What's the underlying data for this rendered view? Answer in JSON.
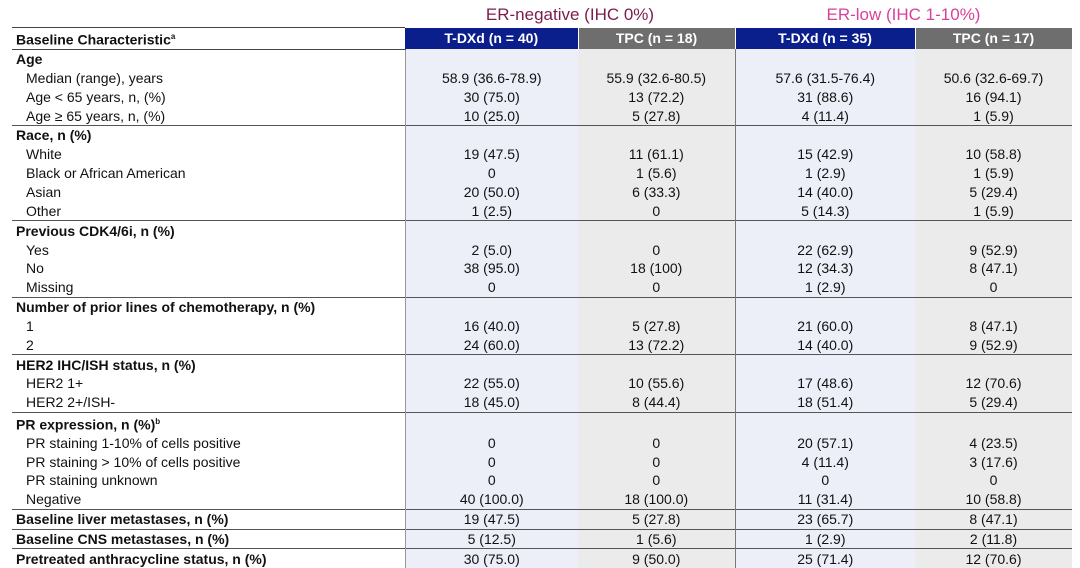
{
  "groups": [
    {
      "label": "ER-negative (IHC 0%)",
      "color": "#7b1c4e"
    },
    {
      "label": "ER-low (IHC 1-10%)",
      "color": "#d9419a"
    }
  ],
  "header": {
    "label": "Baseline Characteristic",
    "label_sup": "a",
    "columns": [
      "T-DXd (n = 40)",
      "TPC (n = 18)",
      "T-DXd (n = 35)",
      "TPC (n = 17)"
    ]
  },
  "colors": {
    "tdxd_header": "#0b1f8c",
    "tpc_header": "#6e6e6e"
  },
  "rows": [
    {
      "label": "Age",
      "type": "section",
      "values": [
        "",
        "",
        "",
        ""
      ]
    },
    {
      "label": "Median (range), years",
      "type": "sub",
      "values": [
        "58.9 (36.6-78.9)",
        "55.9 (32.6-80.5)",
        "57.6 (31.5-76.4)",
        "50.6 (32.6-69.7)"
      ]
    },
    {
      "label": "Age < 65 years, n, (%)",
      "type": "sub",
      "values": [
        "30 (75.0)",
        "13 (72.2)",
        "31 (88.6)",
        "16 (94.1)"
      ]
    },
    {
      "label": "Age ≥ 65 years, n, (%)",
      "type": "sub",
      "values": [
        "10 (25.0)",
        "5 (27.8)",
        "4 (11.4)",
        "1 (5.9)"
      ]
    },
    {
      "label": "Race, n (%)",
      "type": "section",
      "values": [
        "",
        "",
        "",
        ""
      ]
    },
    {
      "label": "White",
      "type": "sub",
      "values": [
        "19 (47.5)",
        "11 (61.1)",
        "15 (42.9)",
        "10 (58.8)"
      ]
    },
    {
      "label": "Black or African American",
      "type": "sub",
      "values": [
        "0",
        "1 (5.6)",
        "1 (2.9)",
        "1 (5.9)"
      ]
    },
    {
      "label": "Asian",
      "type": "sub",
      "values": [
        "20 (50.0)",
        "6 (33.3)",
        "14 (40.0)",
        "5 (29.4)"
      ]
    },
    {
      "label": "Other",
      "type": "sub",
      "values": [
        "1 (2.5)",
        "0",
        "5 (14.3)",
        "1 (5.9)"
      ]
    },
    {
      "label": "Previous CDK4/6i, n (%)",
      "type": "section",
      "values": [
        "",
        "",
        "",
        ""
      ]
    },
    {
      "label": "Yes",
      "type": "sub",
      "values": [
        "2 (5.0)",
        "0",
        "22 (62.9)",
        "9 (52.9)"
      ]
    },
    {
      "label": "No",
      "type": "sub",
      "values": [
        "38 (95.0)",
        "18 (100)",
        "12 (34.3)",
        "8 (47.1)"
      ]
    },
    {
      "label": "Missing",
      "type": "sub",
      "values": [
        "0",
        "0",
        "1 (2.9)",
        "0"
      ]
    },
    {
      "label": "Number of prior lines of chemotherapy, n (%)",
      "type": "section",
      "values": [
        "",
        "",
        "",
        ""
      ]
    },
    {
      "label": "1",
      "type": "sub",
      "values": [
        "16 (40.0)",
        "5 (27.8)",
        "21 (60.0)",
        "8 (47.1)"
      ]
    },
    {
      "label": "2",
      "type": "sub",
      "values": [
        "24 (60.0)",
        "13 (72.2)",
        "14 (40.0)",
        "9 (52.9)"
      ]
    },
    {
      "label": "HER2 IHC/ISH status, n (%)",
      "type": "section",
      "values": [
        "",
        "",
        "",
        ""
      ]
    },
    {
      "label": "HER2 1+",
      "type": "sub",
      "values": [
        "22 (55.0)",
        "10 (55.6)",
        "17 (48.6)",
        "12 (70.6)"
      ]
    },
    {
      "label": "HER2 2+/ISH-",
      "type": "sub",
      "values": [
        "18 (45.0)",
        "8 (44.4)",
        "18 (51.4)",
        "5 (29.4)"
      ]
    },
    {
      "label": "PR expression, n (%)",
      "label_sup": "b",
      "type": "section",
      "values": [
        "",
        "",
        "",
        ""
      ]
    },
    {
      "label": "PR staining 1-10% of cells positive",
      "type": "sub",
      "values": [
        "0",
        "0",
        "20 (57.1)",
        "4 (23.5)"
      ]
    },
    {
      "label": "PR staining > 10% of cells positive",
      "type": "sub",
      "values": [
        "0",
        "0",
        "4 (11.4)",
        "3 (17.6)"
      ]
    },
    {
      "label": "PR staining unknown",
      "type": "sub",
      "values": [
        "0",
        "0",
        "0",
        "0"
      ]
    },
    {
      "label": "Negative",
      "type": "sub",
      "values": [
        "40 (100.0)",
        "18 (100.0)",
        "11 (31.4)",
        "10 (58.8)"
      ]
    },
    {
      "label": "Baseline liver metastases, n (%)",
      "type": "section",
      "values": [
        "19 (47.5)",
        "5 (27.8)",
        "23 (65.7)",
        "8 (47.1)"
      ]
    },
    {
      "label": "Baseline CNS metastases, n (%)",
      "type": "section",
      "values": [
        "5 (12.5)",
        "1 (5.6)",
        "1 (2.9)",
        "2 (11.8)"
      ]
    },
    {
      "label": "Pretreated anthracycline status, n (%)",
      "type": "section",
      "values": [
        "30 (75.0)",
        "9 (50.0)",
        "25 (71.4)",
        "12 (70.6)"
      ]
    }
  ]
}
